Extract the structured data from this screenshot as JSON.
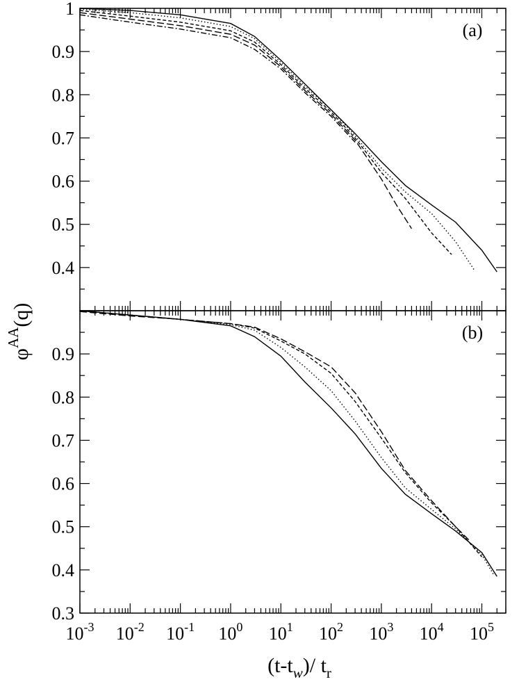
{
  "chart_data": [
    {
      "type": "line",
      "panel_label": "(a)",
      "xscale": "log",
      "xlim": [
        0.001,
        300000
      ],
      "ylim": [
        0.3,
        1.0
      ],
      "ytick_labels": [
        "0.4",
        "0.5",
        "0.6",
        "0.7",
        "0.8",
        "0.9",
        "1"
      ],
      "series": [
        {
          "style": "solid",
          "x": [
            0.001,
            0.01,
            0.1,
            1,
            3,
            10,
            30,
            100,
            300,
            1000,
            3000,
            10000,
            30000,
            100000,
            200000
          ],
          "y": [
            1.0,
            0.995,
            0.985,
            0.965,
            0.935,
            0.88,
            0.825,
            0.765,
            0.71,
            0.645,
            0.59,
            0.545,
            0.505,
            0.44,
            0.39
          ]
        },
        {
          "style": "dotted",
          "x": [
            0.001,
            0.01,
            0.1,
            1,
            3,
            10,
            30,
            100,
            300,
            1000,
            3000,
            10000,
            30000,
            70000
          ],
          "y": [
            0.998,
            0.99,
            0.978,
            0.958,
            0.93,
            0.875,
            0.82,
            0.765,
            0.705,
            0.63,
            0.575,
            0.525,
            0.46,
            0.395
          ]
        },
        {
          "style": "dashed",
          "x": [
            0.001,
            0.01,
            0.1,
            1,
            3,
            10,
            30,
            100,
            300,
            1000,
            3000,
            10000,
            25000
          ],
          "y": [
            0.995,
            0.982,
            0.968,
            0.948,
            0.922,
            0.87,
            0.815,
            0.76,
            0.7,
            0.62,
            0.56,
            0.48,
            0.43
          ]
        },
        {
          "style": "long-dashed",
          "x": [
            0.001,
            0.01,
            0.1,
            1,
            3,
            10,
            30,
            100,
            300,
            1000,
            2000,
            4000
          ],
          "y": [
            0.99,
            0.975,
            0.96,
            0.94,
            0.915,
            0.865,
            0.81,
            0.755,
            0.695,
            0.605,
            0.545,
            0.49
          ]
        },
        {
          "style": "dash-dot",
          "x": [
            0.001,
            0.01,
            0.1,
            1,
            3,
            10,
            30,
            100,
            300
          ],
          "y": [
            0.985,
            0.968,
            0.952,
            0.932,
            0.905,
            0.86,
            0.805,
            0.75,
            0.69
          ]
        }
      ]
    },
    {
      "type": "line",
      "panel_label": "(b)",
      "xscale": "log",
      "xlim": [
        0.001,
        300000
      ],
      "ylim": [
        0.3,
        1.0
      ],
      "ytick_labels": [
        "0.3",
        "0.4",
        "0.5",
        "0.6",
        "0.7",
        "0.8",
        "0.9"
      ],
      "xlabel_main": "(t-t",
      "xlabel_sub_w": "w",
      "xlabel_mid": ")/ t",
      "xlabel_sub_r": "r",
      "ylabel_main": "φ",
      "ylabel_sup": "AA",
      "ylabel_tail": "(q)",
      "xtick_labels": [
        {
          "base": "10",
          "exp": "-3"
        },
        {
          "base": "10",
          "exp": "-2"
        },
        {
          "base": "10",
          "exp": "-1"
        },
        {
          "base": "10",
          "exp": "0"
        },
        {
          "base": "10",
          "exp": "1"
        },
        {
          "base": "10",
          "exp": "2"
        },
        {
          "base": "10",
          "exp": "3"
        },
        {
          "base": "10",
          "exp": "4"
        },
        {
          "base": "10",
          "exp": "5"
        }
      ],
      "series": [
        {
          "style": "solid",
          "x": [
            0.001,
            0.01,
            0.1,
            1,
            3,
            10,
            30,
            100,
            300,
            1000,
            3000,
            10000,
            30000,
            100000,
            200000
          ],
          "y": [
            1.0,
            0.99,
            0.98,
            0.965,
            0.94,
            0.895,
            0.835,
            0.775,
            0.715,
            0.635,
            0.575,
            0.53,
            0.49,
            0.44,
            0.385
          ]
        },
        {
          "style": "dotted",
          "x": [
            0.001,
            0.01,
            0.1,
            1,
            3,
            10,
            30,
            100,
            300,
            1000,
            3000,
            10000,
            30000,
            100000,
            170000
          ],
          "y": [
            1.0,
            0.99,
            0.98,
            0.968,
            0.955,
            0.915,
            0.87,
            0.815,
            0.745,
            0.66,
            0.59,
            0.54,
            0.495,
            0.435,
            0.39
          ]
        },
        {
          "style": "dashed",
          "x": [
            0.001,
            0.01,
            0.1,
            1,
            3,
            10,
            30,
            100,
            300,
            1000,
            3000,
            10000,
            30000,
            100000
          ],
          "y": [
            1.0,
            0.99,
            0.98,
            0.97,
            0.96,
            0.93,
            0.9,
            0.855,
            0.79,
            0.705,
            0.625,
            0.555,
            0.5,
            0.43
          ]
        },
        {
          "style": "long-dashed",
          "x": [
            0.001,
            0.01,
            0.1,
            1,
            3,
            10,
            30,
            100,
            300,
            1000,
            3000,
            10000,
            30000,
            60000
          ],
          "y": [
            0.998,
            0.988,
            0.98,
            0.97,
            0.962,
            0.935,
            0.905,
            0.87,
            0.81,
            0.72,
            0.63,
            0.56,
            0.5,
            0.465
          ]
        }
      ]
    }
  ]
}
